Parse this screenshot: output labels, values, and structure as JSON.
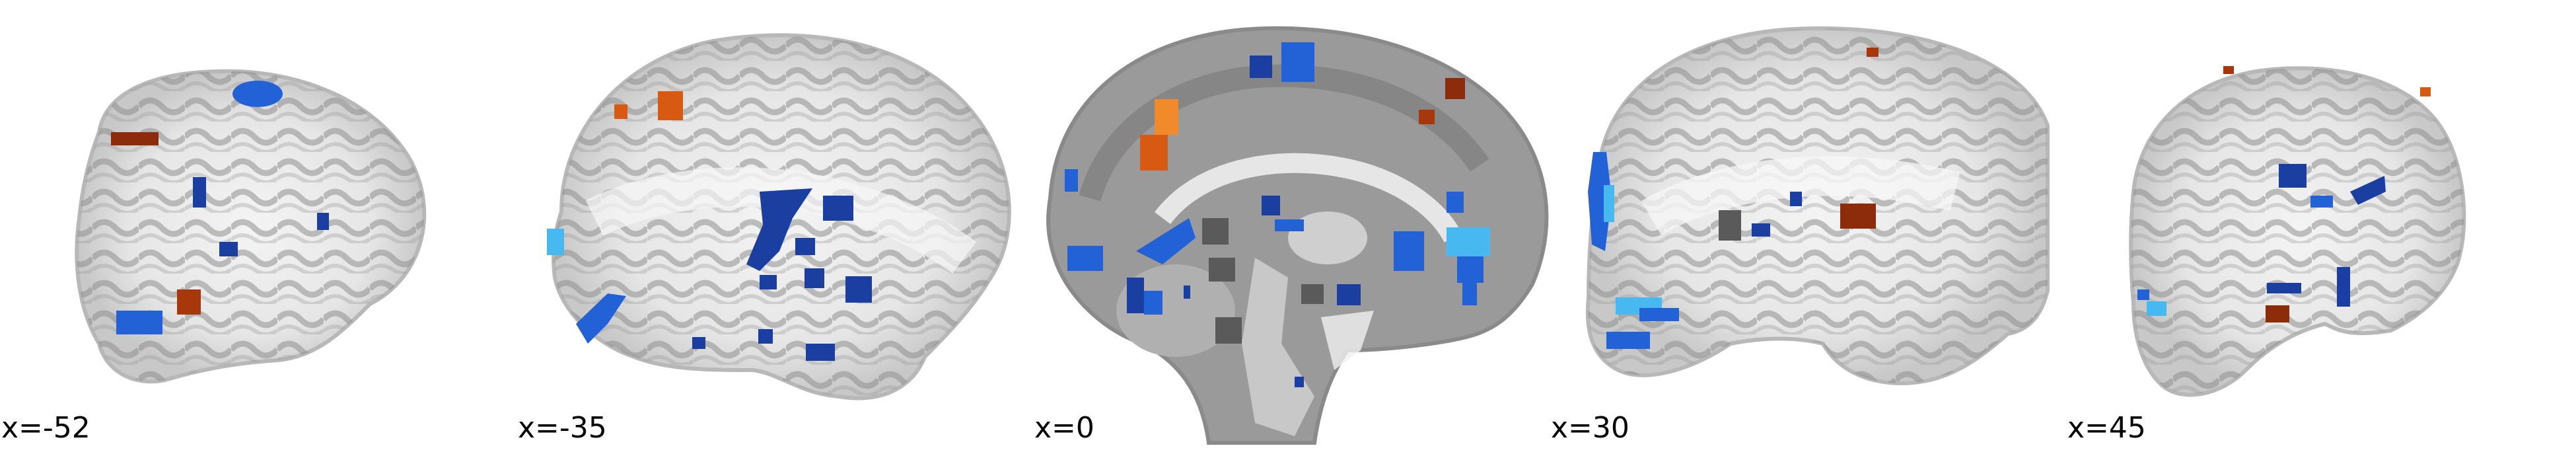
{
  "figure": {
    "view": "sagittal",
    "background": "#ffffff",
    "colors": {
      "negative_dark": "#1a3fa0",
      "negative_mid": "#2262d6",
      "negative_light": "#48b8f0",
      "positive_dark": "#8c2c0a",
      "positive_mid": "#d85a12",
      "positive_light": "#f08a2a"
    },
    "slices": [
      {
        "label": "x=-52"
      },
      {
        "label": "x=-35"
      },
      {
        "label": "x=0"
      },
      {
        "label": "x=30"
      },
      {
        "label": "x=45"
      }
    ]
  }
}
